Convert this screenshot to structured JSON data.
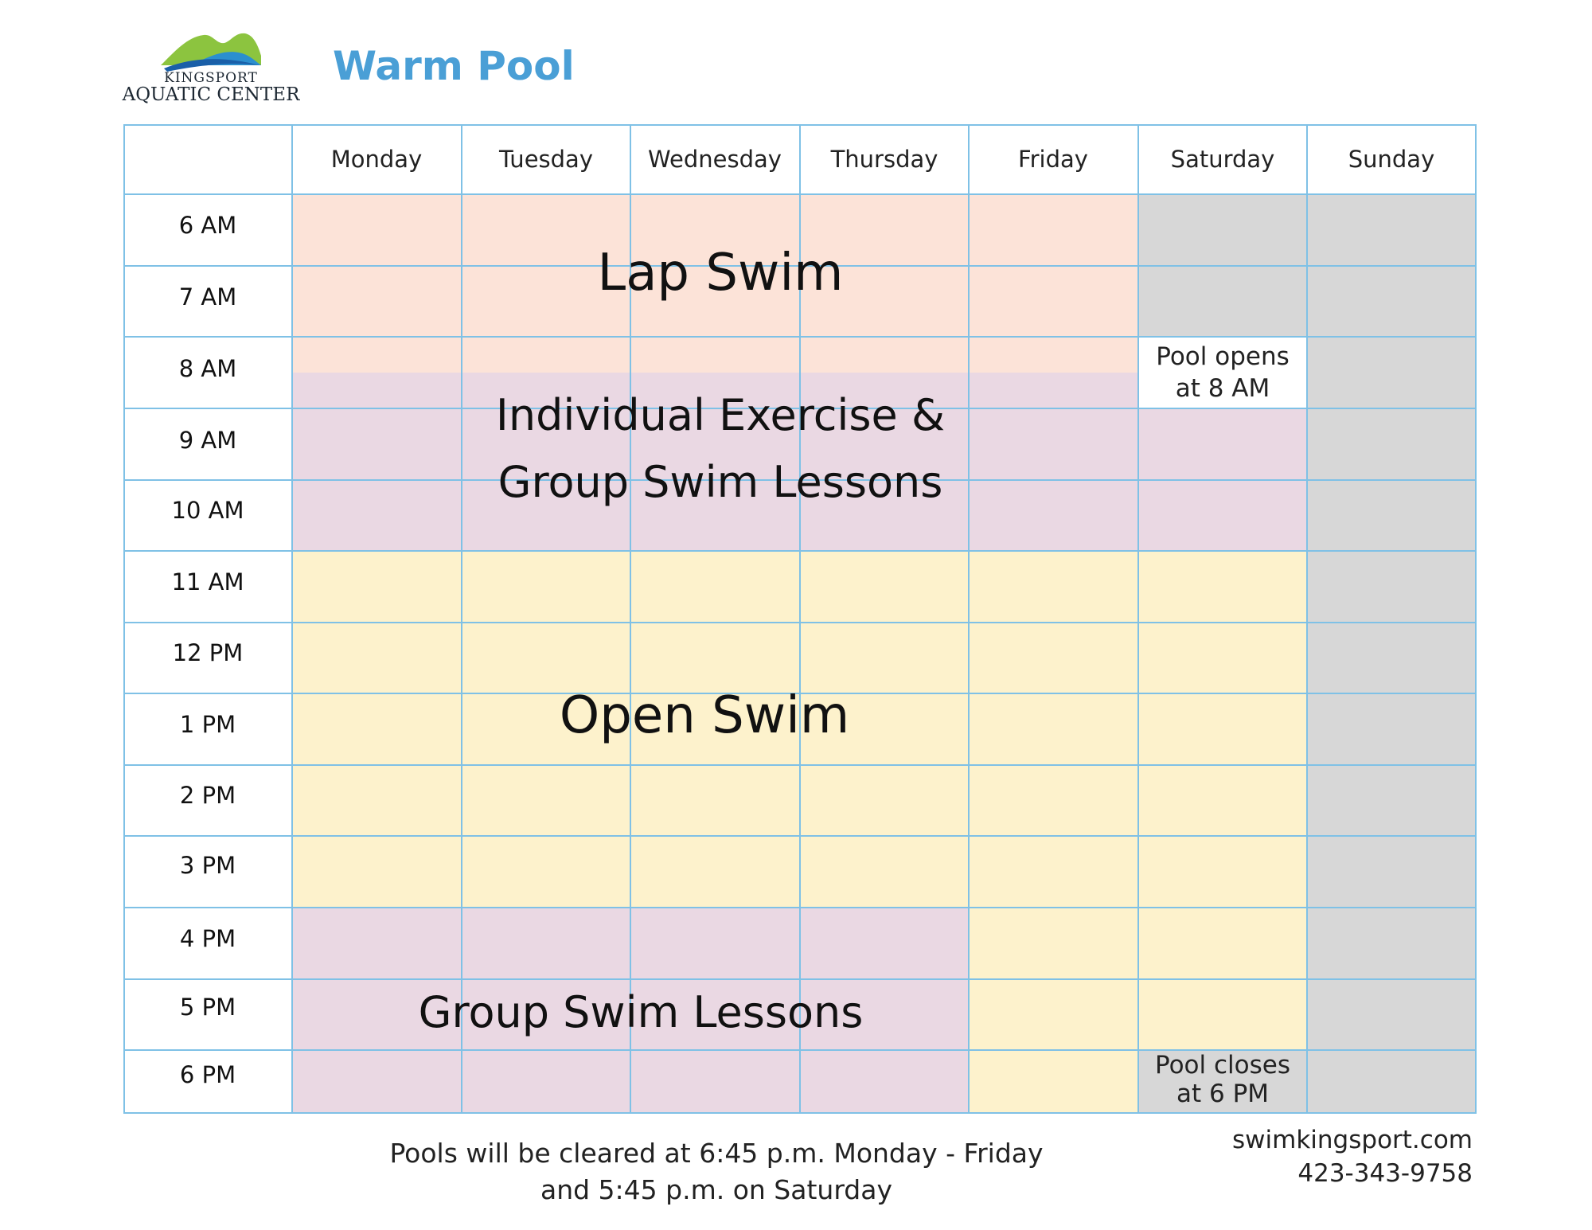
{
  "header": {
    "logo_line1": "KINGSPORT",
    "logo_line2": "AQUATIC CENTER",
    "title": "Warm Pool"
  },
  "schedule": {
    "days": [
      "Monday",
      "Tuesday",
      "Wednesday",
      "Thursday",
      "Friday",
      "Saturday",
      "Sunday"
    ],
    "times": [
      "6 AM",
      "7 AM",
      "8 AM",
      "9 AM",
      "10 AM",
      "11 AM",
      "12 PM",
      "1 PM",
      "2 PM",
      "3 PM",
      "4 PM",
      "5 PM",
      "6 PM"
    ],
    "blocks": {
      "lap_swim": "Lap Swim",
      "exercise_line1": "Individual Exercise &",
      "exercise_line2": "Group Swim Lessons",
      "open_swim": "Open Swim",
      "group_lessons": "Group Swim Lessons"
    },
    "notes": {
      "sat_open_line1": "Pool opens",
      "sat_open_line2": "at 8 AM",
      "sat_close_line1": "Pool closes",
      "sat_close_line2": "at 6 PM"
    },
    "colors": {
      "lap_swim": "#fce3d8",
      "lessons": "#ead8e3",
      "open_swim": "#fdf2cc",
      "closed": "#d7d7d7",
      "grid_lines": "#7fc1e6",
      "title": "#4a9fd6"
    }
  },
  "footer": {
    "note_line1": "Pools will be cleared at 6:45 p.m. Monday - Friday",
    "note_line2": "and 5:45 p.m. on Saturday",
    "website": "swimkingsport.com",
    "phone": "423-343-9758"
  }
}
